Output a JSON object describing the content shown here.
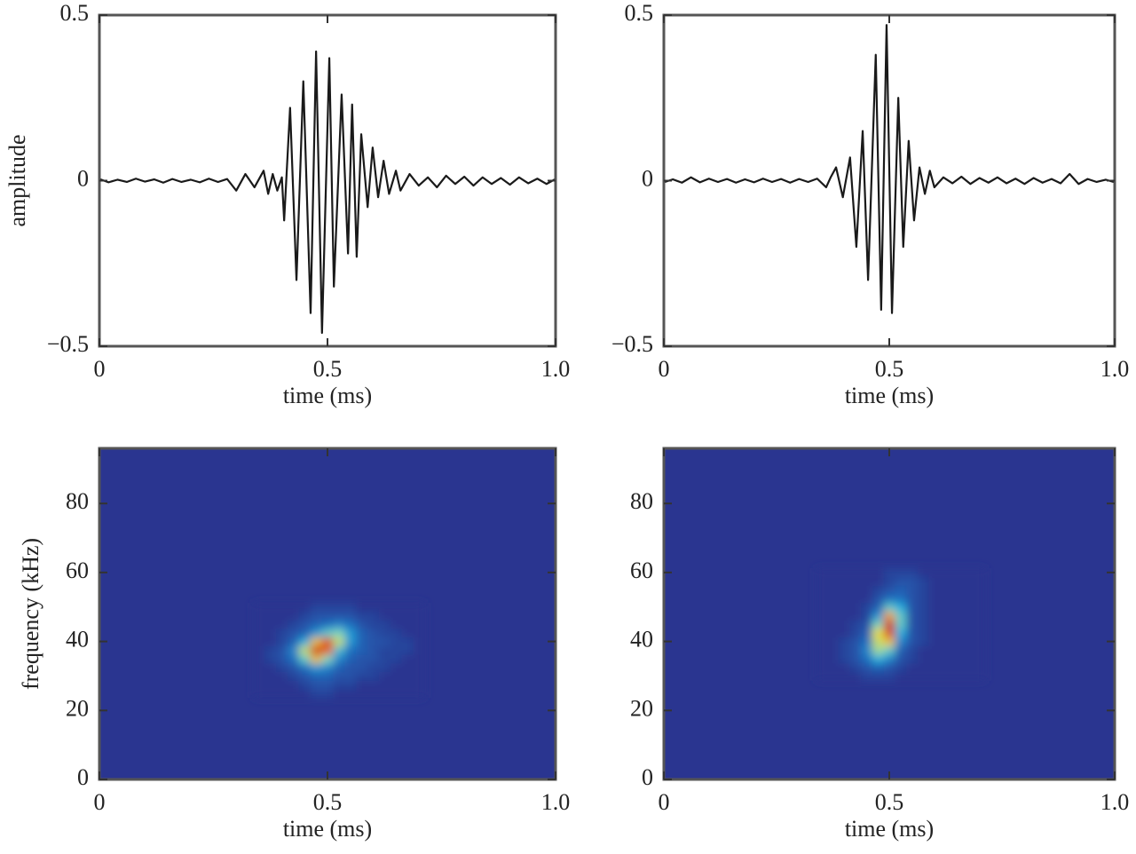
{
  "chart_data": [
    {
      "type": "line",
      "xlabel": "time (ms)",
      "ylabel": "amplitude",
      "x": [
        0,
        0.02,
        0.04,
        0.06,
        0.08,
        0.1,
        0.12,
        0.14,
        0.16,
        0.18,
        0.2,
        0.22,
        0.24,
        0.26,
        0.28,
        0.3,
        0.32,
        0.34,
        0.36,
        0.37,
        0.38,
        0.39,
        0.4,
        0.405,
        0.418,
        0.432,
        0.447,
        0.463,
        0.475,
        0.488,
        0.504,
        0.514,
        0.531,
        0.545,
        0.554,
        0.564,
        0.574,
        0.588,
        0.599,
        0.611,
        0.623,
        0.635,
        0.65,
        0.66,
        0.68,
        0.7,
        0.72,
        0.74,
        0.76,
        0.78,
        0.8,
        0.82,
        0.84,
        0.86,
        0.88,
        0.9,
        0.92,
        0.94,
        0.96,
        0.98,
        1.0
      ],
      "series": [
        {
          "color": "#1a1a1a",
          "values": [
            0.005,
            -0.005,
            0.003,
            -0.004,
            0.006,
            -0.003,
            0.004,
            -0.006,
            0.005,
            -0.004,
            0.003,
            -0.005,
            0.006,
            -0.004,
            0.005,
            -0.03,
            0.02,
            -0.02,
            0.03,
            -0.04,
            0.02,
            -0.03,
            0.01,
            -0.12,
            0.22,
            -0.3,
            0.3,
            -0.4,
            0.39,
            -0.46,
            0.37,
            -0.32,
            0.26,
            -0.22,
            0.23,
            -0.23,
            0.14,
            -0.08,
            0.1,
            -0.05,
            0.06,
            -0.04,
            0.03,
            -0.03,
            0.02,
            -0.015,
            0.01,
            -0.02,
            0.015,
            -0.01,
            0.012,
            -0.015,
            0.01,
            -0.01,
            0.008,
            -0.012,
            0.01,
            -0.008,
            0.006,
            -0.01,
            0.005
          ]
        }
      ],
      "xlim": [
        0,
        1
      ],
      "xticks": [
        0,
        0.5,
        {
          "value": 1,
          "label": "1.0"
        }
      ],
      "ylim": [
        -0.5,
        0.5
      ],
      "yticks": [
        {
          "value": -0.5,
          "label": "−0.5"
        },
        0,
        0.5
      ]
    },
    {
      "type": "line",
      "xlabel": "time (ms)",
      "x": [
        0,
        0.02,
        0.04,
        0.06,
        0.08,
        0.1,
        0.12,
        0.14,
        0.16,
        0.18,
        0.2,
        0.22,
        0.24,
        0.26,
        0.28,
        0.3,
        0.32,
        0.34,
        0.36,
        0.37,
        0.382,
        0.397,
        0.413,
        0.427,
        0.441,
        0.453,
        0.47,
        0.482,
        0.494,
        0.506,
        0.52,
        0.531,
        0.543,
        0.555,
        0.567,
        0.579,
        0.59,
        0.6,
        0.62,
        0.64,
        0.66,
        0.68,
        0.7,
        0.72,
        0.74,
        0.76,
        0.78,
        0.8,
        0.82,
        0.84,
        0.86,
        0.88,
        0.9,
        0.92,
        0.94,
        0.96,
        0.98,
        1.0
      ],
      "series": [
        {
          "color": "#1a1a1a",
          "values": [
            -0.005,
            0.004,
            -0.006,
            0.01,
            -0.005,
            0.006,
            -0.004,
            0.005,
            -0.006,
            0.004,
            -0.005,
            0.006,
            -0.004,
            0.005,
            -0.006,
            0.005,
            -0.004,
            0.006,
            -0.02,
            0.01,
            0.04,
            -0.05,
            0.07,
            -0.2,
            0.15,
            -0.3,
            0.38,
            -0.39,
            0.47,
            -0.4,
            0.25,
            -0.2,
            0.12,
            -0.12,
            0.04,
            -0.04,
            0.03,
            -0.02,
            0.01,
            -0.008,
            0.012,
            -0.01,
            0.008,
            -0.006,
            0.01,
            -0.008,
            0.006,
            -0.01,
            0.008,
            -0.006,
            0.005,
            -0.008,
            0.02,
            -0.01,
            0.005,
            -0.004,
            0.003,
            -0.005
          ]
        }
      ],
      "xlim": [
        0,
        1
      ],
      "xticks": [
        0,
        0.5,
        {
          "value": 1,
          "label": "1.0"
        }
      ],
      "ylim": [
        -0.5,
        0.5
      ],
      "yticks": [
        {
          "value": -0.5,
          "label": "−0.5"
        },
        0,
        0.5
      ]
    },
    {
      "type": "heatmap",
      "xlabel": "time (ms)",
      "ylabel": "frequency (kHz)",
      "x": [
        0.35,
        0.375,
        0.4,
        0.425,
        0.45,
        0.475,
        0.5,
        0.525,
        0.55,
        0.575,
        0.6,
        0.625,
        0.65,
        0.675,
        0.7
      ],
      "y": [
        25,
        27.5,
        30,
        32.5,
        35,
        37.5,
        40,
        42.5,
        45,
        47.5,
        50
      ],
      "z": [
        [
          0,
          0,
          0,
          0,
          0,
          0.05,
          0.05,
          0,
          0,
          0,
          0,
          0,
          0,
          0,
          0
        ],
        [
          0,
          0,
          0,
          0,
          0.05,
          0.1,
          0.1,
          0.05,
          0.05,
          0,
          0,
          0,
          0,
          0,
          0
        ],
        [
          0,
          0,
          0,
          0.05,
          0.1,
          0.15,
          0.15,
          0.1,
          0.1,
          0.05,
          0.05,
          0,
          0,
          0,
          0
        ],
        [
          0,
          0,
          0.05,
          0.1,
          0.2,
          0.3,
          0.25,
          0.15,
          0.1,
          0.1,
          0.05,
          0.05,
          0,
          0,
          0
        ],
        [
          0,
          0.05,
          0.1,
          0.2,
          0.45,
          0.7,
          0.5,
          0.25,
          0.15,
          0.1,
          0.1,
          0.05,
          0.05,
          0,
          0
        ],
        [
          0,
          0.05,
          0.1,
          0.25,
          0.6,
          0.95,
          0.85,
          0.4,
          0.2,
          0.15,
          0.1,
          0.05,
          0.05,
          0.05,
          0
        ],
        [
          0,
          0,
          0.05,
          0.15,
          0.35,
          0.7,
          0.9,
          0.6,
          0.3,
          0.15,
          0.1,
          0.1,
          0.05,
          0.05,
          0
        ],
        [
          0,
          0,
          0.05,
          0.1,
          0.15,
          0.3,
          0.45,
          0.5,
          0.3,
          0.15,
          0.1,
          0.05,
          0.05,
          0,
          0
        ],
        [
          0,
          0,
          0,
          0.05,
          0.1,
          0.15,
          0.2,
          0.25,
          0.2,
          0.1,
          0.05,
          0.05,
          0,
          0,
          0
        ],
        [
          0,
          0,
          0,
          0,
          0.05,
          0.1,
          0.1,
          0.1,
          0.1,
          0.05,
          0.05,
          0,
          0,
          0,
          0
        ],
        [
          0,
          0,
          0,
          0,
          0,
          0.05,
          0.05,
          0.05,
          0.05,
          0,
          0,
          0,
          0,
          0,
          0
        ]
      ],
      "xlim": [
        0,
        1
      ],
      "xticks": [
        0,
        0.5,
        {
          "value": 1,
          "label": "1.0"
        }
      ],
      "ylim": [
        0,
        96
      ],
      "yticks": [
        0,
        20,
        40,
        60,
        80
      ]
    },
    {
      "type": "heatmap",
      "xlabel": "time (ms)",
      "x": [
        0.35,
        0.375,
        0.4,
        0.425,
        0.45,
        0.475,
        0.5,
        0.525,
        0.55,
        0.575,
        0.6,
        0.625,
        0.65,
        0.675,
        0.7
      ],
      "y": [
        30,
        32.5,
        35,
        37.5,
        40,
        42.5,
        45,
        47.5,
        50,
        52.5,
        55,
        57.5,
        60
      ],
      "z": [
        [
          0,
          0,
          0,
          0,
          0.05,
          0.05,
          0.05,
          0,
          0,
          0,
          0,
          0,
          0,
          0,
          0
        ],
        [
          0,
          0,
          0,
          0.05,
          0.1,
          0.15,
          0.1,
          0.05,
          0,
          0,
          0,
          0,
          0,
          0,
          0
        ],
        [
          0,
          0,
          0.05,
          0.1,
          0.2,
          0.35,
          0.25,
          0.1,
          0.05,
          0,
          0,
          0,
          0,
          0,
          0
        ],
        [
          0,
          0,
          0.05,
          0.1,
          0.25,
          0.55,
          0.45,
          0.15,
          0.05,
          0,
          0,
          0,
          0,
          0,
          0
        ],
        [
          0,
          0,
          0.05,
          0.1,
          0.2,
          0.6,
          0.7,
          0.25,
          0.1,
          0.05,
          0,
          0,
          0,
          0,
          0
        ],
        [
          0,
          0,
          0,
          0.05,
          0.15,
          0.65,
          0.9,
          0.35,
          0.1,
          0.05,
          0,
          0,
          0,
          0,
          0
        ],
        [
          0,
          0,
          0,
          0.05,
          0.1,
          0.5,
          0.95,
          0.45,
          0.1,
          0.05,
          0,
          0,
          0,
          0,
          0
        ],
        [
          0,
          0,
          0,
          0,
          0.05,
          0.3,
          0.75,
          0.45,
          0.1,
          0.05,
          0,
          0,
          0,
          0,
          0
        ],
        [
          0,
          0,
          0,
          0,
          0.05,
          0.15,
          0.45,
          0.35,
          0.1,
          0.05,
          0,
          0,
          0,
          0,
          0
        ],
        [
          0,
          0,
          0,
          0,
          0,
          0.1,
          0.2,
          0.2,
          0.1,
          0.05,
          0,
          0,
          0,
          0,
          0
        ],
        [
          0,
          0,
          0,
          0,
          0,
          0.05,
          0.1,
          0.15,
          0.1,
          0.05,
          0,
          0,
          0,
          0,
          0
        ],
        [
          0,
          0,
          0,
          0,
          0,
          0,
          0.05,
          0.1,
          0.1,
          0.05,
          0,
          0,
          0,
          0,
          0
        ],
        [
          0,
          0,
          0,
          0,
          0,
          0,
          0.05,
          0.05,
          0.05,
          0,
          0,
          0,
          0,
          0,
          0
        ]
      ],
      "xlim": [
        0,
        1
      ],
      "xticks": [
        0,
        0.5,
        {
          "value": 1,
          "label": "1.0"
        }
      ],
      "ylim": [
        0,
        96
      ],
      "yticks": [
        0,
        20,
        40,
        60,
        80
      ]
    }
  ]
}
